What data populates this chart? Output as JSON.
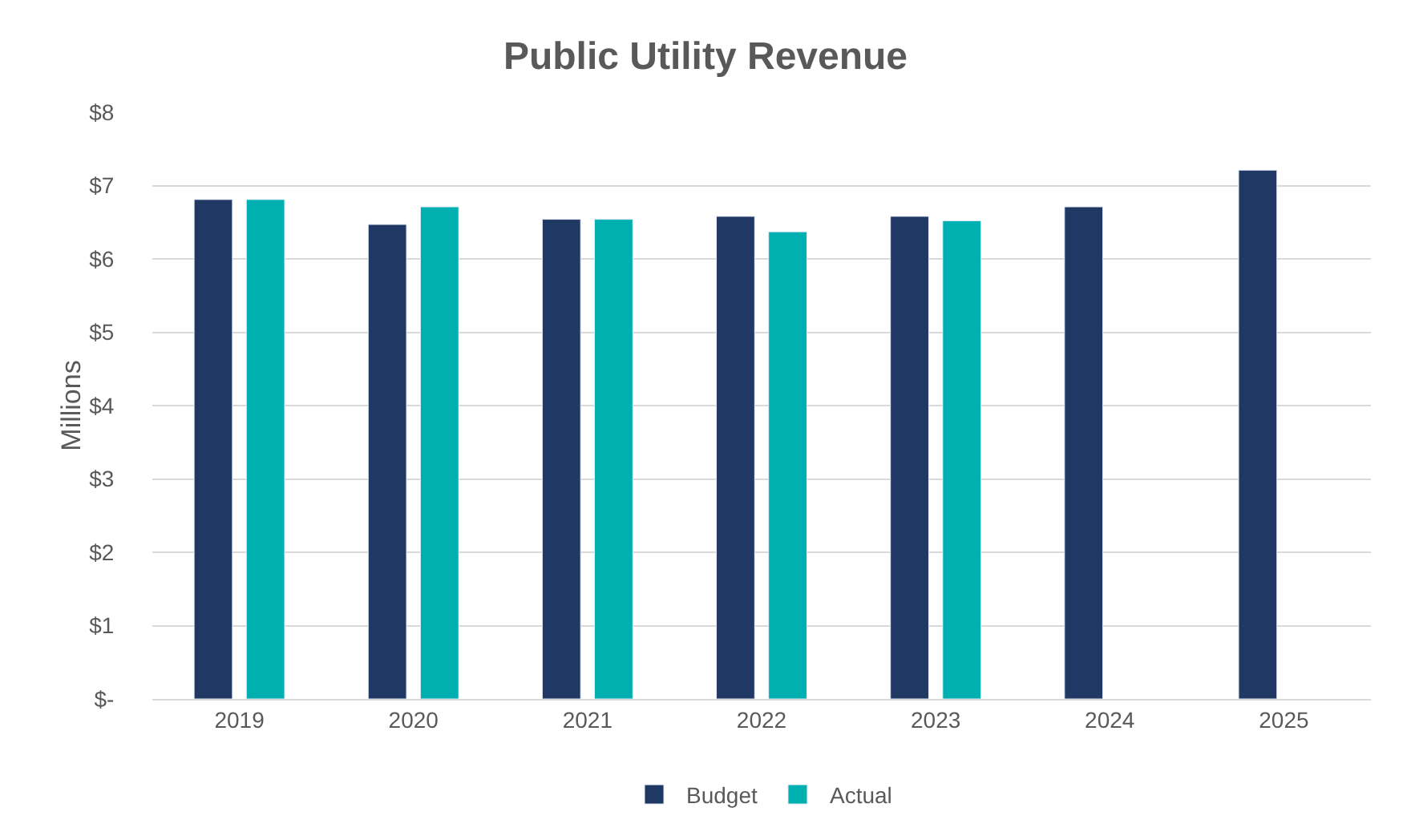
{
  "chart_data": {
    "type": "bar",
    "title": "Public Utility Revenue",
    "ylabel": "Millions",
    "categories": [
      "2019",
      "2020",
      "2021",
      "2022",
      "2023",
      "2024",
      "2025"
    ],
    "series": [
      {
        "name": "Budget",
        "color": "#203864",
        "values": [
          6.81,
          6.47,
          6.54,
          6.58,
          6.58,
          6.71,
          7.21
        ]
      },
      {
        "name": "Actual",
        "color": "#00b0b0",
        "values": [
          6.81,
          6.71,
          6.54,
          6.37,
          6.52,
          null,
          null
        ]
      }
    ],
    "ylim": [
      0,
      8
    ],
    "yticks": [
      {
        "value": 0,
        "label": "$-"
      },
      {
        "value": 1,
        "label": "$1"
      },
      {
        "value": 2,
        "label": "$2"
      },
      {
        "value": 3,
        "label": "$3"
      },
      {
        "value": 4,
        "label": "$4"
      },
      {
        "value": 5,
        "label": "$5"
      },
      {
        "value": 6,
        "label": "$6"
      },
      {
        "value": 7,
        "label": "$7"
      },
      {
        "value": 8,
        "label": "$8"
      }
    ],
    "grid": "y",
    "legend": "bottom"
  }
}
